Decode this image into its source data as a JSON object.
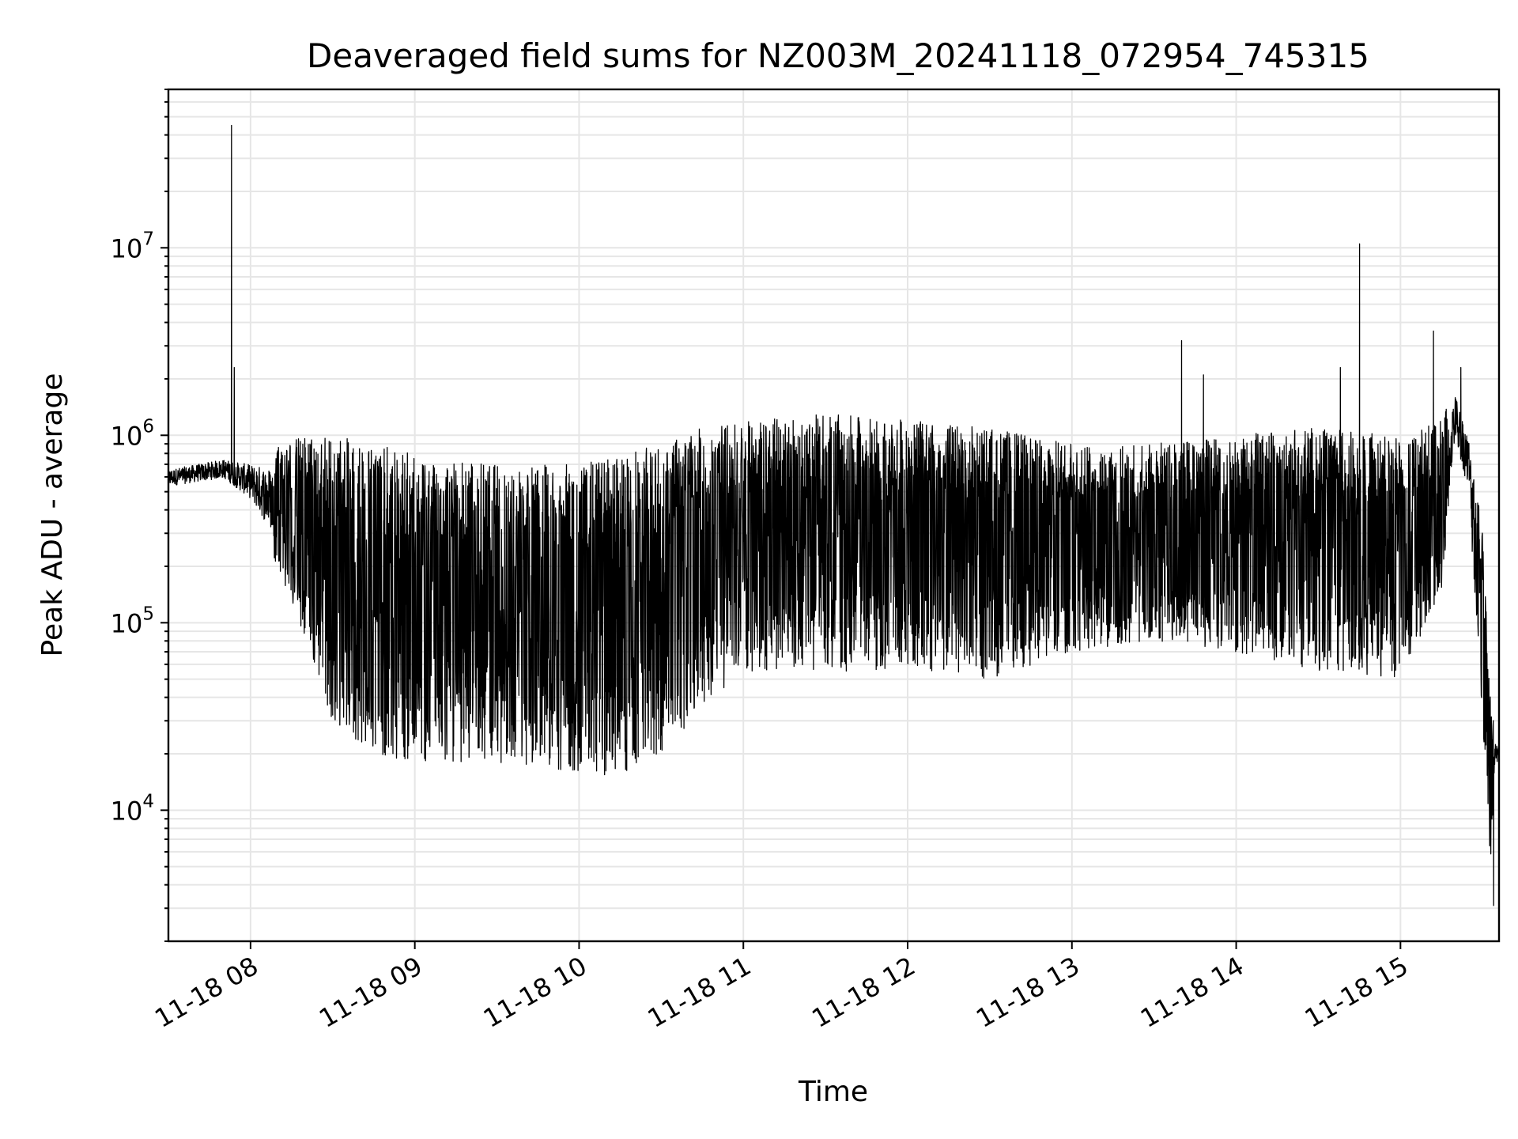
{
  "chart_data": {
    "type": "line",
    "title": "Deaveraged field sums for NZ003M_20241118_072954_745315",
    "xlabel": "Time",
    "ylabel": "Peak ADU - average",
    "x_scale": "time",
    "y_scale": "log",
    "xlim": [
      "2024-11-18 07:30",
      "2024-11-18 15:36"
    ],
    "ylim": [
      2000,
      70000000
    ],
    "grid": true,
    "grid_minor_y": true,
    "line_color": "#000000",
    "x_ticks": [
      {
        "value": "2024-11-18 08:00",
        "label": "11-18 08"
      },
      {
        "value": "2024-11-18 09:00",
        "label": "11-18 09"
      },
      {
        "value": "2024-11-18 10:00",
        "label": "11-18 10"
      },
      {
        "value": "2024-11-18 11:00",
        "label": "11-18 11"
      },
      {
        "value": "2024-11-18 12:00",
        "label": "11-18 12"
      },
      {
        "value": "2024-11-18 13:00",
        "label": "11-18 13"
      },
      {
        "value": "2024-11-18 14:00",
        "label": "11-18 14"
      },
      {
        "value": "2024-11-18 15:00",
        "label": "11-18 15"
      }
    ],
    "y_ticks": [
      {
        "value": 10000,
        "base": "10",
        "exp": "4"
      },
      {
        "value": 100000,
        "base": "10",
        "exp": "5"
      },
      {
        "value": 1000000,
        "base": "10",
        "exp": "6"
      },
      {
        "value": 10000000,
        "base": "10",
        "exp": "7"
      }
    ],
    "envelope": {
      "x": [
        "2024-11-18 07:30",
        "2024-11-18 07:50",
        "2024-11-18 08:00",
        "2024-11-18 08:10",
        "2024-11-18 08:20",
        "2024-11-18 08:30",
        "2024-11-18 08:45",
        "2024-11-18 09:00",
        "2024-11-18 09:30",
        "2024-11-18 10:00",
        "2024-11-18 10:15",
        "2024-11-18 10:30",
        "2024-11-18 10:45",
        "2024-11-18 11:00",
        "2024-11-18 11:30",
        "2024-11-18 12:00",
        "2024-11-18 12:30",
        "2024-11-18 13:00",
        "2024-11-18 13:30",
        "2024-11-18 14:00",
        "2024-11-18 14:30",
        "2024-11-18 15:00",
        "2024-11-18 15:15",
        "2024-11-18 15:20",
        "2024-11-18 15:25",
        "2024-11-18 15:30",
        "2024-11-18 15:33",
        "2024-11-18 15:35"
      ],
      "y_high": [
        700000,
        800000,
        800000,
        900000,
        1000000,
        1000000,
        900000,
        800000,
        700000,
        700000,
        800000,
        900000,
        1100000,
        1200000,
        1300000,
        1200000,
        1100000,
        900000,
        900000,
        1000000,
        1100000,
        1000000,
        1200000,
        2000000,
        1200000,
        300000,
        40000,
        25000
      ],
      "y_low": [
        500000,
        550000,
        400000,
        200000,
        80000,
        30000,
        20000,
        18000,
        18000,
        16000,
        15000,
        20000,
        35000,
        55000,
        55000,
        55000,
        50000,
        70000,
        80000,
        70000,
        55000,
        50000,
        150000,
        800000,
        400000,
        30000,
        4000,
        15000
      ]
    },
    "spikes": [
      {
        "x": "2024-11-18 07:53",
        "y": 45000000
      },
      {
        "x": "2024-11-18 07:54",
        "y": 2300000
      },
      {
        "x": "2024-11-18 13:40",
        "y": 3200000
      },
      {
        "x": "2024-11-18 13:48",
        "y": 2100000
      },
      {
        "x": "2024-11-18 14:38",
        "y": 2300000
      },
      {
        "x": "2024-11-18 14:45",
        "y": 10500000
      },
      {
        "x": "2024-11-18 15:12",
        "y": 3600000
      },
      {
        "x": "2024-11-18 15:22",
        "y": 2300000
      }
    ],
    "dips": [
      {
        "x": "2024-11-18 15:34",
        "y": 3100
      }
    ]
  }
}
